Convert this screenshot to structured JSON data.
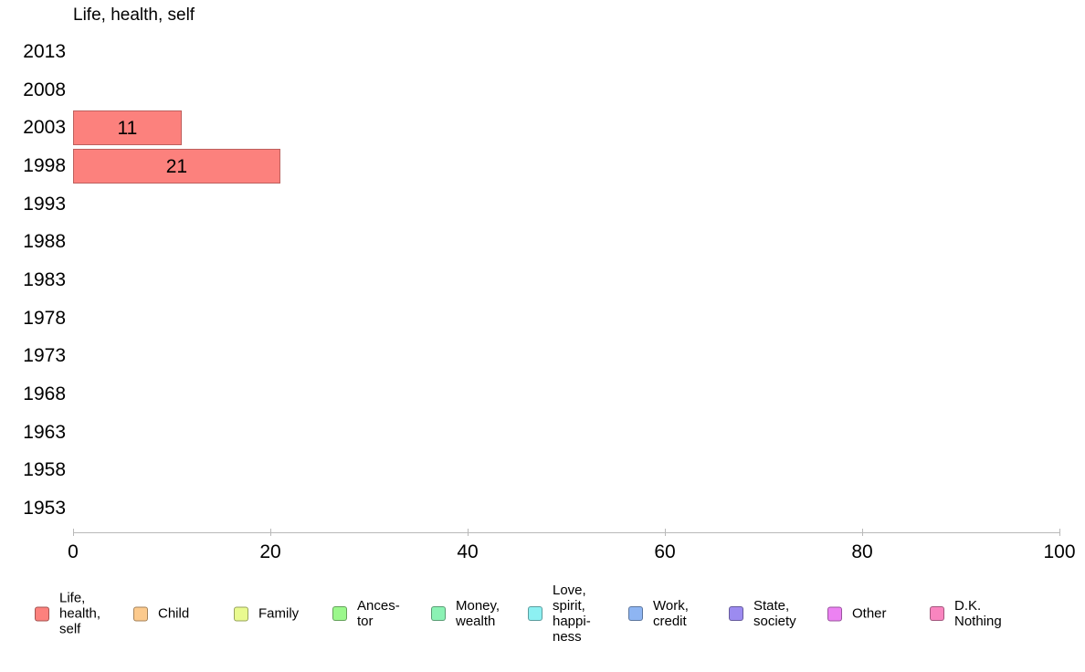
{
  "chart_data": {
    "type": "bar",
    "orientation": "horizontal",
    "title": "Life, health, self",
    "categories": [
      "2013",
      "2008",
      "2003",
      "1998",
      "1993",
      "1988",
      "1983",
      "1978",
      "1973",
      "1968",
      "1963",
      "1958",
      "1953"
    ],
    "series": [
      {
        "name": "Life, health, self",
        "color": "#FC817D",
        "values": [
          null,
          null,
          11,
          21,
          null,
          null,
          null,
          null,
          null,
          null,
          null,
          null,
          null
        ]
      }
    ],
    "xlabel": "",
    "ylabel": "",
    "xlim": [
      0,
      100
    ],
    "x_ticks": [
      "0",
      "20",
      "40",
      "60",
      "80",
      "100"
    ],
    "grid": false,
    "legend_position": "bottom"
  },
  "legend": {
    "items": [
      {
        "label": "Life,\nhealth,\nself",
        "color": "#FC817D"
      },
      {
        "label": "Child",
        "color": "#FCCA8D"
      },
      {
        "label": "Family",
        "color": "#E9FA90"
      },
      {
        "label": "Ances-\ntor",
        "color": "#9BF88C"
      },
      {
        "label": "Money,\nwealth",
        "color": "#8BF2B4"
      },
      {
        "label": "Love,\nspirit,\nhappi-\nness",
        "color": "#8DF0F2"
      },
      {
        "label": "Work,\ncredit",
        "color": "#8EB5F2"
      },
      {
        "label": "State,\nsociety",
        "color": "#9C8BF0"
      },
      {
        "label": "Other",
        "color": "#EC82F2"
      },
      {
        "label": "D.K.\nNothing",
        "color": "#F985BF"
      }
    ]
  }
}
